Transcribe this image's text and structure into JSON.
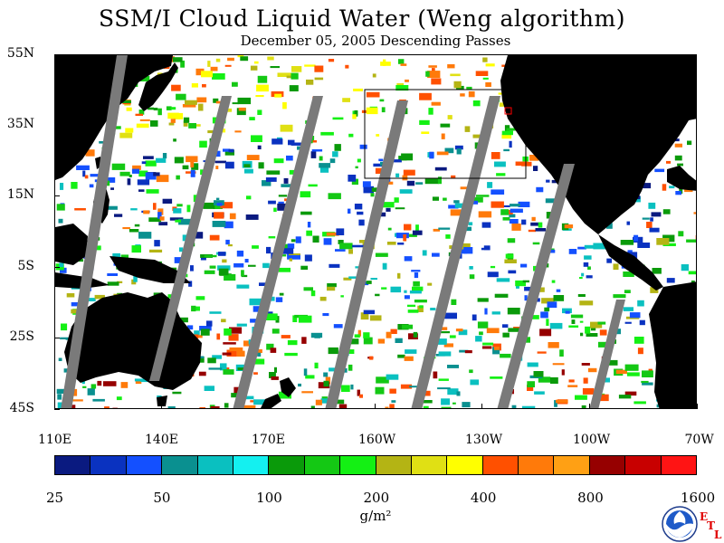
{
  "title": "SSM/I Cloud Liquid Water (Weng algorithm)",
  "subtitle": "December 05, 2005  Descending Passes",
  "map": {
    "lat_labels": [
      "55N",
      "35N",
      "15N",
      "5S",
      "25S",
      "45S"
    ],
    "lon_labels": [
      "110E",
      "140E",
      "170E",
      "160W",
      "130W",
      "100W",
      "70W"
    ],
    "colors": {
      "land": "#000000",
      "no_data_swath_gap": "#7a7a7a",
      "clear": "#ffffff"
    }
  },
  "colorbar": {
    "colors": [
      "#0a1a80",
      "#0a32c0",
      "#1450ff",
      "#0a9090",
      "#0ac0c0",
      "#14f0f0",
      "#0a9a0a",
      "#14c814",
      "#14f014",
      "#b4b414",
      "#e0e014",
      "#ffff00",
      "#ff5000",
      "#ff7a0a",
      "#ffa014",
      "#960000",
      "#c80000",
      "#ff1414"
    ],
    "tick_labels": [
      "25",
      "50",
      "100",
      "200",
      "400",
      "800",
      "1600"
    ],
    "unit": "g/m²"
  },
  "logo": {
    "icon": "noaa-logo-icon",
    "letters": [
      "E",
      "T",
      "L"
    ]
  }
}
